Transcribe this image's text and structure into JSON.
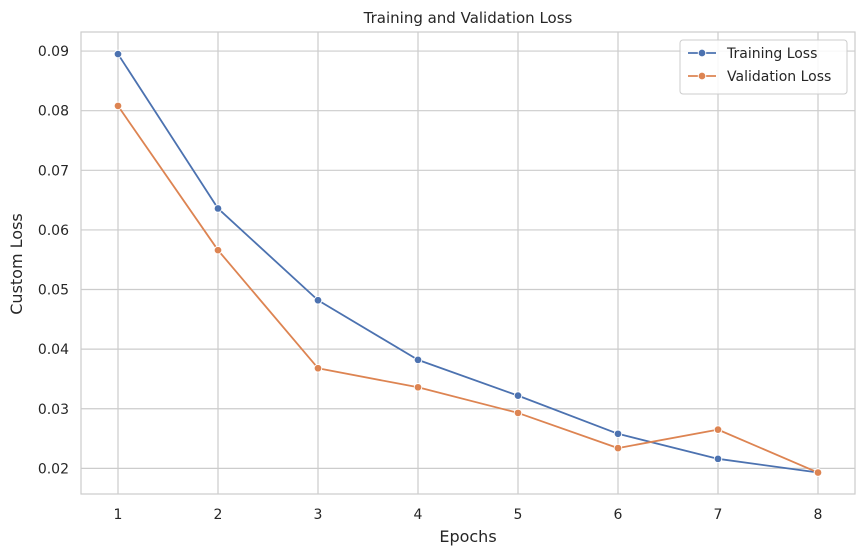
{
  "chart_data": {
    "type": "line",
    "title": "Training and Validation Loss",
    "xlabel": "Epochs",
    "ylabel": "Custom Loss",
    "x": [
      1,
      2,
      3,
      4,
      5,
      6,
      7,
      8
    ],
    "xlim": [
      0.63,
      8.37
    ],
    "ylim": [
      0.0157,
      0.0932
    ],
    "xticks": [
      1,
      2,
      3,
      4,
      5,
      6,
      7,
      8
    ],
    "yticks": [
      0.02,
      0.03,
      0.04,
      0.05,
      0.06,
      0.07,
      0.08,
      0.09
    ],
    "ytick_labels": [
      "0.02",
      "0.03",
      "0.04",
      "0.05",
      "0.06",
      "0.07",
      "0.08",
      "0.09"
    ],
    "grid": true,
    "legend_position": "top-right",
    "series": [
      {
        "name": "Training Loss",
        "color": "#4c72b0",
        "marker": "circle",
        "values": [
          0.0895,
          0.0636,
          0.0482,
          0.0382,
          0.0322,
          0.0258,
          0.0216,
          0.0193
        ]
      },
      {
        "name": "Validation Loss",
        "color": "#dd8452",
        "marker": "circle",
        "values": [
          0.0808,
          0.0566,
          0.0368,
          0.0336,
          0.0293,
          0.0234,
          0.0265,
          0.0193
        ]
      }
    ]
  }
}
